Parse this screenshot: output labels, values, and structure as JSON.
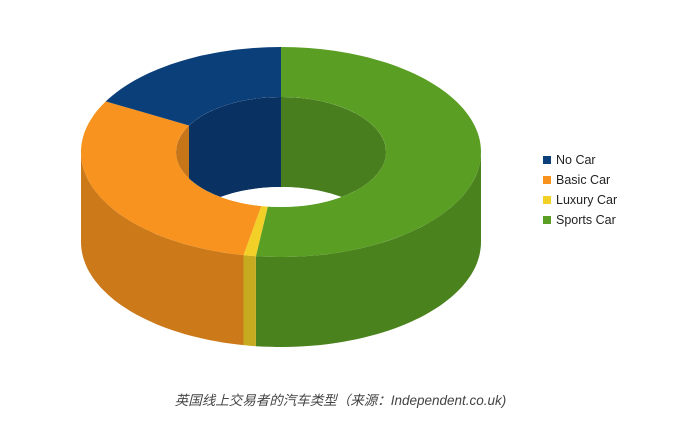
{
  "chart_data": {
    "type": "pie",
    "style": "3d-donut",
    "categories": [
      "No Car",
      "Basic Car",
      "Luxury Car",
      "Sports Car"
    ],
    "values": [
      17,
      30,
      1,
      52
    ],
    "unit": "percent (estimated)",
    "colors": [
      "#0b3f7a",
      "#f7931e",
      "#f2d027",
      "#5a9e24"
    ],
    "legend_position": "right"
  },
  "legend": [
    {
      "label": "No Car",
      "color": "#0b3f7a"
    },
    {
      "label": "Basic Car",
      "color": "#f7931e"
    },
    {
      "label": "Luxury Car",
      "color": "#f2d027"
    },
    {
      "label": "Sports Car",
      "color": "#5a9e24"
    }
  ],
  "caption": "英国线上交易者的汽车类型（来源：Independent.co.uk)"
}
